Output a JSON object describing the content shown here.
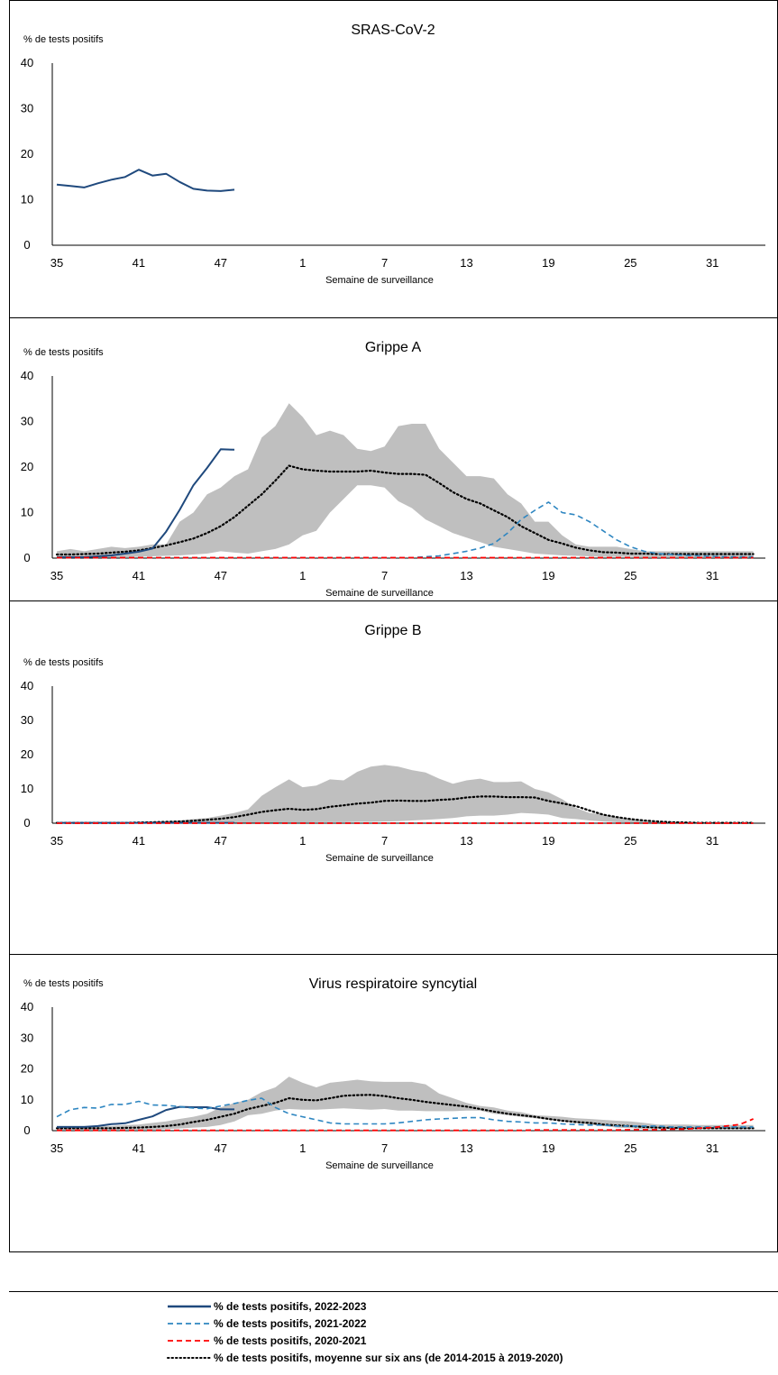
{
  "colors": {
    "s2022_2023": "#1f497d",
    "s2021_2022": "#2e86c1",
    "s2020_2021": "#ff0000",
    "average": "#000000",
    "range": "#bfbfbf"
  },
  "legend": [
    {
      "key": "s2022_2023",
      "style": "solid",
      "label": "% de tests positifs, 2022-2023"
    },
    {
      "key": "s2021_2022",
      "style": "dashed",
      "label": "% de tests positifs, 2021-2022"
    },
    {
      "key": "s2020_2021",
      "style": "dashed",
      "label": "% de tests positifs, 2020-2021"
    },
    {
      "key": "average",
      "style": "dotted",
      "label": "% de tests positifs, moyenne sur six ans (de 2014-2015 à 2019-2020)"
    }
  ],
  "chart_data": [
    {
      "type": "line",
      "title": "SRAS-CoV-2",
      "ylabel": "% de tests positifs",
      "xlabel": "Semaine de surveillance",
      "ylim": [
        0,
        40
      ],
      "yticks": [
        0,
        10,
        20,
        30,
        40
      ],
      "xticks": [
        "35",
        "41",
        "47",
        "1",
        "7",
        "13",
        "19",
        "25",
        "31"
      ],
      "series": [
        {
          "key": "s2022_2023",
          "values": [
            13.3,
            13.0,
            12.7,
            13.6,
            14.4,
            15.0,
            16.6,
            15.3,
            15.7,
            13.9,
            12.4,
            12.0,
            11.9,
            12.2
          ]
        }
      ]
    },
    {
      "type": "line",
      "title": "Grippe A",
      "ylabel": "% de tests positifs",
      "xlabel": "Semaine de surveillance",
      "ylim": [
        0,
        40
      ],
      "yticks": [
        0,
        10,
        20,
        30,
        40
      ],
      "xticks": [
        "35",
        "41",
        "47",
        "1",
        "7",
        "13",
        "19",
        "25",
        "31"
      ],
      "band": {
        "upper": [
          1.5,
          2.0,
          1.5,
          2.0,
          2.5,
          2.2,
          2.5,
          3.0,
          3.0,
          8.0,
          10.0,
          14.0,
          15.5,
          18.0,
          19.5,
          26.5,
          29.0,
          34.0,
          31.0,
          27.0,
          28.0,
          27.0,
          24.0,
          23.5,
          24.5,
          29.0,
          29.5,
          29.5,
          24.0,
          21.0,
          18.0,
          18.0,
          17.5,
          14.0,
          12.0,
          8.0,
          8.0,
          5.0,
          3.0,
          2.5,
          2.5,
          2.5,
          2.0,
          1.5,
          1.5,
          1.5,
          1.5,
          1.5,
          1.5,
          1.5,
          1.5,
          1.5
        ],
        "lower": [
          0.1,
          0.1,
          0.1,
          0.1,
          0.1,
          0.2,
          0.3,
          0.4,
          0.5,
          0.6,
          0.8,
          1.0,
          1.5,
          1.2,
          1.0,
          1.5,
          2.0,
          3.0,
          5.0,
          6.0,
          10.0,
          13.0,
          16.0,
          16.0,
          15.5,
          12.5,
          11.0,
          8.5,
          7.0,
          5.5,
          4.5,
          3.5,
          2.5,
          2.0,
          1.5,
          1.0,
          0.8,
          0.6,
          0.5,
          0.4,
          0.3,
          0.3,
          0.3,
          0.2,
          0.2,
          0.2,
          0.2,
          0.2,
          0.2,
          0.2,
          0.2,
          0.2
        ]
      },
      "series": [
        {
          "key": "average",
          "values": [
            0.8,
            0.8,
            0.9,
            1.0,
            1.2,
            1.4,
            1.7,
            2.2,
            2.8,
            3.5,
            4.3,
            5.5,
            7.0,
            9.0,
            11.5,
            14.0,
            17.0,
            20.3,
            19.5,
            19.2,
            19.0,
            19.0,
            19.0,
            19.2,
            18.8,
            18.5,
            18.5,
            18.3,
            16.5,
            14.5,
            13.0,
            12.0,
            10.5,
            9.0,
            7.0,
            5.5,
            4.0,
            3.2,
            2.3,
            1.7,
            1.3,
            1.2,
            1.0,
            1.0,
            0.9,
            0.9,
            0.9,
            0.9,
            0.9,
            0.9,
            0.9,
            0.9
          ]
        },
        {
          "key": "s2022_2023",
          "values": [
            0.2,
            0.2,
            0.2,
            0.4,
            0.6,
            1.0,
            1.4,
            2.1,
            5.8,
            10.6,
            16.0,
            19.8,
            23.9,
            23.8
          ]
        },
        {
          "key": "s2021_2022",
          "values": [
            0.1,
            0.1,
            0.1,
            0.1,
            0.1,
            0.1,
            0.1,
            0.1,
            0.1,
            0.1,
            0.1,
            0.1,
            0.1,
            0.1,
            0.1,
            0.1,
            0.1,
            0.1,
            0.1,
            0.1,
            0.1,
            0.1,
            0.1,
            0.1,
            0.1,
            0.1,
            0.1,
            0.3,
            0.5,
            1.0,
            1.5,
            2.2,
            3.2,
            5.5,
            8.5,
            10.5,
            12.3,
            10.0,
            9.5,
            8.0,
            6.0,
            4.0,
            2.5,
            1.5,
            1.0,
            0.8,
            0.6,
            0.5,
            0.4,
            0.3,
            0.3,
            0.3
          ]
        },
        {
          "key": "s2020_2021",
          "values": [
            0.1,
            0.1,
            0.1,
            0.1,
            0.1,
            0.1,
            0.1,
            0.1,
            0.1,
            0.1,
            0.1,
            0.1,
            0.1,
            0.1,
            0.1,
            0.1,
            0.1,
            0.1,
            0.1,
            0.1,
            0.1,
            0.1,
            0.1,
            0.1,
            0.1,
            0.1,
            0.1,
            0.1,
            0.1,
            0.1,
            0.1,
            0.1,
            0.1,
            0.1,
            0.1,
            0.1,
            0.1,
            0.1,
            0.1,
            0.1,
            0.1,
            0.1,
            0.1,
            0.1,
            0.1,
            0.1,
            0.1,
            0.1,
            0.1,
            0.1,
            0.1,
            0.1
          ]
        }
      ]
    },
    {
      "type": "line",
      "title": "Grippe B",
      "ylabel": "% de tests positifs",
      "xlabel": "Semaine de surveillance",
      "ylim": [
        0,
        40
      ],
      "yticks": [
        0,
        10,
        20,
        30,
        40
      ],
      "xticks": [
        "35",
        "41",
        "47",
        "1",
        "7",
        "13",
        "19",
        "25",
        "31"
      ],
      "band": {
        "upper": [
          0.3,
          0.3,
          0.3,
          0.3,
          0.3,
          0.3,
          0.4,
          0.5,
          0.6,
          0.8,
          1.2,
          1.5,
          2.2,
          3.0,
          4.0,
          8.0,
          10.5,
          12.8,
          10.5,
          11.0,
          12.8,
          12.5,
          15.0,
          16.5,
          17.0,
          16.5,
          15.5,
          14.8,
          13.0,
          11.5,
          12.5,
          13.0,
          12.0,
          12.0,
          12.2,
          10.0,
          9.0,
          7.0,
          4.5,
          3.0,
          2.5,
          1.8,
          1.2,
          0.7,
          0.5,
          0.4,
          0.3,
          0.3,
          0.3,
          0.3,
          0.3,
          0.3
        ],
        "lower": [
          0.0,
          0.0,
          0.0,
          0.0,
          0.0,
          0.0,
          0.0,
          0.0,
          0.0,
          0.0,
          0.1,
          0.1,
          0.1,
          0.1,
          0.1,
          0.1,
          0.1,
          0.2,
          0.2,
          0.3,
          0.3,
          0.3,
          0.4,
          0.4,
          0.5,
          0.6,
          0.8,
          1.0,
          1.2,
          1.5,
          2.0,
          2.2,
          2.2,
          2.5,
          3.0,
          2.8,
          2.5,
          1.5,
          1.2,
          0.8,
          0.5,
          0.3,
          0.2,
          0.1,
          0.1,
          0.0,
          0.0,
          0.0,
          0.0,
          0.0,
          0.0,
          0.0
        ]
      },
      "series": [
        {
          "key": "average",
          "values": [
            0.1,
            0.1,
            0.1,
            0.1,
            0.1,
            0.1,
            0.2,
            0.3,
            0.4,
            0.5,
            0.7,
            1.0,
            1.3,
            1.8,
            2.5,
            3.3,
            3.8,
            4.2,
            3.9,
            4.1,
            4.8,
            5.2,
            5.7,
            6.0,
            6.5,
            6.6,
            6.5,
            6.5,
            6.8,
            7.0,
            7.5,
            7.8,
            7.8,
            7.6,
            7.6,
            7.5,
            6.5,
            5.8,
            5.0,
            3.7,
            2.5,
            1.8,
            1.2,
            0.8,
            0.5,
            0.3,
            0.2,
            0.1,
            0.1,
            0.1,
            0.1,
            0.1
          ]
        },
        {
          "key": "s2022_2023",
          "values": [
            0.1,
            0.1,
            0.1,
            0.1,
            0.1,
            0.1,
            0.1,
            0.1,
            0.1,
            0.1,
            0.1,
            0.1,
            0.1,
            0.1
          ]
        },
        {
          "key": "s2021_2022",
          "values": [
            0.05,
            0.05,
            0.05,
            0.05,
            0.05,
            0.05,
            0.05,
            0.05,
            0.05,
            0.05,
            0.05,
            0.05,
            0.05,
            0.05,
            0.05,
            0.05,
            0.05,
            0.05,
            0.05,
            0.05,
            0.05,
            0.05,
            0.05,
            0.05,
            0.05,
            0.05,
            0.05,
            0.05,
            0.05,
            0.05,
            0.05,
            0.05,
            0.05,
            0.05,
            0.05,
            0.05,
            0.05,
            0.05,
            0.05,
            0.05,
            0.05,
            0.05,
            0.05,
            0.05,
            0.05,
            0.05,
            0.05,
            0.05,
            0.05,
            0.05,
            0.05,
            0.05
          ]
        },
        {
          "key": "s2020_2021",
          "values": [
            0.0,
            0.0,
            0.0,
            0.0,
            0.0,
            0.0,
            0.0,
            0.0,
            0.0,
            0.0,
            0.0,
            0.0,
            0.0,
            0.0,
            0.0,
            0.0,
            0.0,
            0.0,
            0.0,
            0.0,
            0.0,
            0.0,
            0.0,
            0.0,
            0.0,
            0.0,
            0.0,
            0.0,
            0.0,
            0.0,
            0.0,
            0.0,
            0.0,
            0.0,
            0.0,
            0.0,
            0.0,
            0.0,
            0.0,
            0.0,
            0.0,
            0.0,
            0.0,
            0.0,
            0.0,
            0.0,
            0.0,
            0.0,
            0.0,
            0.0,
            0.0,
            0.0
          ]
        }
      ]
    },
    {
      "type": "line",
      "title": "Virus respiratoire syncytial",
      "ylabel": "% de tests positifs",
      "xlabel": "Semaine de surveillance",
      "ylim": [
        0,
        40
      ],
      "yticks": [
        0,
        10,
        20,
        30,
        40
      ],
      "xticks": [
        "35",
        "41",
        "47",
        "1",
        "7",
        "13",
        "19",
        "25",
        "31"
      ],
      "band": {
        "upper": [
          1.5,
          1.5,
          1.5,
          1.5,
          1.5,
          1.8,
          2.0,
          2.5,
          3.0,
          3.8,
          4.5,
          5.5,
          7.5,
          9.0,
          10.0,
          12.5,
          14.0,
          17.5,
          15.5,
          14.0,
          15.5,
          16.0,
          16.5,
          16.0,
          15.8,
          15.8,
          15.8,
          15.0,
          12.0,
          10.5,
          9.0,
          8.0,
          7.5,
          6.5,
          6.0,
          5.0,
          4.8,
          4.5,
          4.0,
          3.8,
          3.5,
          3.2,
          3.0,
          2.5,
          2.0,
          2.0,
          2.0,
          1.8,
          1.8,
          1.8,
          1.8,
          1.8
        ],
        "lower": [
          0.3,
          0.3,
          0.3,
          0.3,
          0.3,
          0.3,
          0.3,
          0.3,
          0.5,
          0.7,
          1.0,
          1.2,
          1.8,
          3.0,
          5.0,
          5.5,
          6.5,
          7.0,
          6.8,
          6.8,
          7.0,
          7.2,
          7.0,
          6.8,
          7.0,
          6.5,
          6.5,
          6.3,
          6.3,
          6.3,
          6.5,
          6.5,
          5.5,
          5.0,
          4.5,
          4.0,
          3.5,
          3.0,
          2.5,
          2.0,
          1.5,
          1.0,
          0.8,
          0.5,
          0.5,
          0.5,
          0.5,
          0.5,
          0.5,
          0.5,
          0.5,
          0.5
        ]
      },
      "series": [
        {
          "key": "average",
          "values": [
            0.8,
            0.8,
            0.8,
            0.8,
            0.8,
            0.9,
            1.0,
            1.2,
            1.5,
            2.0,
            2.8,
            3.5,
            4.5,
            5.5,
            7.0,
            8.0,
            9.0,
            10.5,
            10.0,
            9.8,
            10.5,
            11.3,
            11.5,
            11.6,
            11.2,
            10.5,
            10.0,
            9.3,
            8.8,
            8.3,
            7.8,
            7.0,
            6.2,
            5.5,
            5.0,
            4.5,
            3.8,
            3.2,
            2.8,
            2.5,
            2.0,
            1.7,
            1.5,
            1.2,
            1.0,
            0.9,
            0.8,
            0.8,
            0.8,
            0.8,
            0.8,
            0.8
          ]
        },
        {
          "key": "s2022_2023",
          "values": [
            1.2,
            1.2,
            1.2,
            1.5,
            2.1,
            2.4,
            3.5,
            4.6,
            6.7,
            7.7,
            7.6,
            7.6,
            6.9,
            6.9
          ]
        },
        {
          "key": "s2021_2022",
          "values": [
            4.5,
            6.8,
            7.5,
            7.3,
            8.5,
            8.5,
            9.5,
            8.3,
            8.2,
            7.8,
            7.3,
            7.1,
            8.0,
            8.8,
            9.8,
            10.5,
            7.5,
            5.5,
            4.5,
            3.5,
            2.5,
            2.2,
            2.2,
            2.2,
            2.2,
            2.5,
            3.0,
            3.5,
            3.8,
            4.0,
            4.2,
            4.2,
            3.5,
            3.0,
            2.8,
            2.5,
            2.5,
            2.2,
            2.0,
            1.8,
            1.8,
            1.5,
            1.5,
            1.5,
            1.5,
            1.2,
            1.2,
            1.2,
            1.2,
            1.2,
            1.2,
            1.2
          ]
        },
        {
          "key": "s2020_2021",
          "values": [
            0.1,
            0.1,
            0.1,
            0.1,
            0.1,
            0.1,
            0.1,
            0.1,
            0.1,
            0.1,
            0.1,
            0.1,
            0.1,
            0.1,
            0.1,
            0.1,
            0.1,
            0.1,
            0.1,
            0.1,
            0.1,
            0.1,
            0.1,
            0.1,
            0.1,
            0.1,
            0.1,
            0.1,
            0.1,
            0.1,
            0.1,
            0.1,
            0.1,
            0.1,
            0.1,
            0.2,
            0.2,
            0.2,
            0.2,
            0.2,
            0.2,
            0.2,
            0.3,
            0.3,
            0.3,
            0.5,
            0.5,
            0.8,
            1.0,
            1.5,
            2.0,
            3.8
          ]
        }
      ]
    }
  ]
}
